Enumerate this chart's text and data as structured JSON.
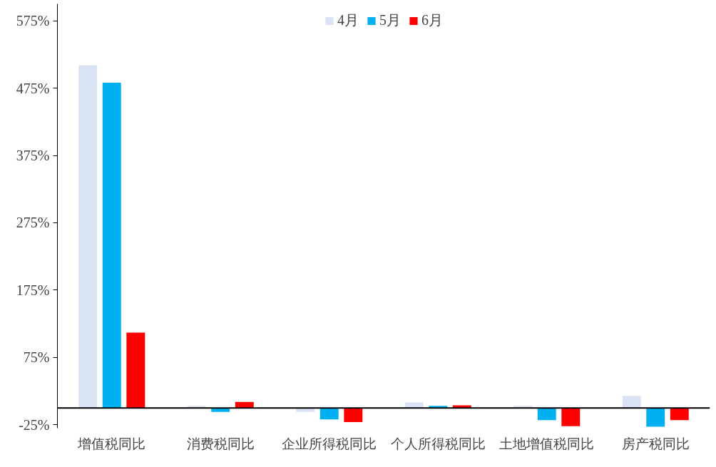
{
  "chart_data": {
    "type": "bar",
    "categories": [
      "增值税同比",
      "消费税同比",
      "企业所得税同比",
      "个人所得税同比",
      "土地增值税同比",
      "房产税同比"
    ],
    "series": [
      {
        "name": "4月",
        "color": "#dae3f3",
        "values": [
          509,
          3,
          -6,
          8,
          3,
          18
        ]
      },
      {
        "name": "5月",
        "color": "#00b0f0",
        "values": [
          483,
          -6,
          -17,
          3,
          -18,
          -28
        ]
      },
      {
        "name": "6月",
        "color": "#ff0000",
        "values": [
          112,
          9,
          -21,
          4,
          -27,
          -18
        ]
      }
    ],
    "ylim": [
      -30,
      600
    ],
    "yticks": [
      {
        "value": -25,
        "label": "-25%"
      },
      {
        "value": 75,
        "label": "75%"
      },
      {
        "value": 175,
        "label": "175%"
      },
      {
        "value": 275,
        "label": "275%"
      },
      {
        "value": 375,
        "label": "375%"
      },
      {
        "value": 475,
        "label": "475%"
      },
      {
        "value": 575,
        "label": "575%"
      }
    ],
    "grid": false,
    "legend": "top"
  }
}
